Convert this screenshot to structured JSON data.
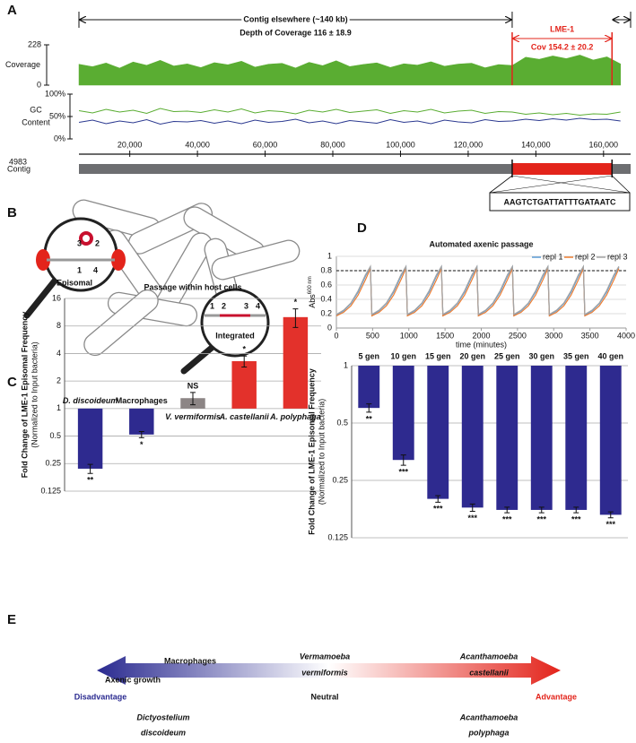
{
  "panel_labels": [
    "A",
    "B",
    "C",
    "D",
    "E"
  ],
  "chart_data": [
    {
      "type": "area",
      "ylabel": "Coverage",
      "color": "#5aad32",
      "x": [
        5000,
        9000,
        13000,
        17000,
        21000,
        25000,
        29000,
        33000,
        37000,
        41000,
        45000,
        49000,
        53000,
        57000,
        61000,
        65000,
        69000,
        73000,
        77000,
        81000,
        85000,
        89000,
        93000,
        97000,
        101000,
        105000,
        109000,
        113000,
        117000,
        121000,
        125000,
        129000,
        133000,
        137000,
        141000,
        145000,
        149000,
        153000,
        157000,
        161000,
        165000
      ],
      "values": [
        118,
        104,
        125,
        96,
        131,
        112,
        140,
        108,
        120,
        99,
        127,
        115,
        135,
        102,
        118,
        123,
        97,
        129,
        110,
        138,
        105,
        117,
        126,
        100,
        121,
        113,
        132,
        107,
        119,
        124,
        98,
        116,
        111,
        158,
        146,
        165,
        150,
        170,
        142,
        160,
        120
      ],
      "xlim": [
        4983,
        168000
      ],
      "ylim": [
        0,
        228
      ],
      "yticks": [
        0,
        228
      ],
      "region": [
        133000,
        162500
      ],
      "region_color": "#e3241b",
      "annotations": {
        "elsewhere": "Contig elsewhere (~140 kb)",
        "depth": "Depth of Coverage 116 ± 18.9",
        "region_name": "LME-1",
        "region_cov": "Cov 154.2 ± 20.2"
      }
    },
    {
      "type": "line",
      "ylabel": [
        "GC",
        "Content"
      ],
      "x": [
        5000,
        9000,
        13000,
        17000,
        21000,
        25000,
        29000,
        33000,
        37000,
        41000,
        45000,
        49000,
        53000,
        57000,
        61000,
        65000,
        69000,
        73000,
        77000,
        81000,
        85000,
        89000,
        93000,
        97000,
        101000,
        105000,
        109000,
        113000,
        117000,
        121000,
        125000,
        129000,
        133000,
        137000,
        141000,
        145000,
        149000,
        153000,
        157000,
        161000,
        165000
      ],
      "series": [
        {
          "color": "#5aad32",
          "values": [
            63,
            58,
            66,
            60,
            64,
            57,
            68,
            61,
            62,
            59,
            65,
            60,
            67,
            58,
            63,
            61,
            56,
            64,
            60,
            66,
            59,
            62,
            65,
            57,
            63,
            60,
            66,
            58,
            62,
            64,
            57,
            61,
            60,
            55,
            58,
            54,
            57,
            53,
            56,
            55,
            60
          ]
        },
        {
          "color": "#2b3990",
          "values": [
            37,
            42,
            34,
            40,
            36,
            43,
            33,
            39,
            38,
            41,
            35,
            40,
            34,
            42,
            37,
            39,
            44,
            36,
            40,
            34,
            41,
            38,
            35,
            43,
            37,
            40,
            34,
            42,
            38,
            36,
            43,
            39,
            40,
            44,
            41,
            45,
            42,
            46,
            43,
            44,
            40
          ]
        }
      ],
      "xlim": [
        4983,
        168000
      ],
      "ylim": [
        0,
        100
      ],
      "yticks": [
        {
          "value": 0,
          "label": "0%"
        },
        {
          "value": 50,
          "label": "50%"
        },
        {
          "value": 100,
          "label": "100%"
        }
      ]
    },
    {
      "type": "track",
      "ylabel": "Contig",
      "color": "#6d6e71",
      "xlim": [
        4983,
        168000
      ],
      "xticks": [
        {
          "value": 20000,
          "label": "20,000"
        },
        {
          "value": 40000,
          "label": "40,000"
        },
        {
          "value": 60000,
          "label": "60,000"
        },
        {
          "value": 80000,
          "label": "80,000"
        },
        {
          "value": 100000,
          "label": "100,000"
        },
        {
          "value": 120000,
          "label": "120,000"
        },
        {
          "value": 140000,
          "label": "140,000"
        },
        {
          "value": 160000,
          "label": "160,000"
        }
      ],
      "sequence": "AAGTCTGATTATTTGATAATC"
    },
    {
      "type": "bar",
      "title": "Passage within host cells",
      "ylabel": "Fold Change of LME-1 Episomal Frequency",
      "ylabel_note": "(Normalized to Input bacteria)",
      "categories": [
        "D. discoideum",
        "Macrophages",
        "V. vermiformis",
        "A. castellanii",
        "A. polyphaga"
      ],
      "italic": [
        true,
        false,
        true,
        true,
        true
      ],
      "values": [
        0.22,
        0.52,
        1.3,
        3.3,
        10
      ],
      "errors": [
        0.025,
        0.04,
        0.2,
        0.45,
        2.3
      ],
      "significance": [
        "**",
        "*",
        "NS",
        "*",
        "*"
      ],
      "colors": [
        "#2e2a8f",
        "#2e2a8f",
        "#8c8585",
        "#e3312b",
        "#e3312b"
      ],
      "yscale": "log2",
      "ylim": [
        0.125,
        16
      ],
      "yticks": [
        0.125,
        0.25,
        0.5,
        1,
        2,
        4,
        8,
        16
      ],
      "grid": true,
      "category_position": "baseline"
    },
    {
      "type": "line",
      "title": "Automated axenic passage",
      "ylabel": "Abs",
      "ylabel_sup": "600 nm",
      "xlabel": "time (minutes)",
      "x": [
        0,
        100,
        200,
        300,
        400,
        470,
        490,
        590,
        690,
        790,
        890,
        960,
        980,
        1080,
        1180,
        1280,
        1380,
        1450,
        1470,
        1570,
        1670,
        1770,
        1870,
        1940,
        1960,
        2060,
        2160,
        2260,
        2360,
        2430,
        2450,
        2550,
        2650,
        2750,
        2850,
        2920,
        2940,
        3040,
        3140,
        3240,
        3340,
        3410,
        3430,
        3530,
        3630,
        3730,
        3830,
        3900
      ],
      "series": [
        {
          "name": "repl 1",
          "color": "#5b9bd5",
          "values": [
            0.18,
            0.24,
            0.34,
            0.5,
            0.72,
            0.85,
            0.18,
            0.24,
            0.34,
            0.5,
            0.72,
            0.85,
            0.18,
            0.24,
            0.34,
            0.5,
            0.72,
            0.85,
            0.18,
            0.24,
            0.34,
            0.5,
            0.72,
            0.85,
            0.18,
            0.24,
            0.34,
            0.5,
            0.72,
            0.85,
            0.18,
            0.24,
            0.34,
            0.5,
            0.72,
            0.85,
            0.18,
            0.24,
            0.34,
            0.5,
            0.72,
            0.85,
            0.18,
            0.24,
            0.34,
            0.5,
            0.72,
            0.85
          ]
        },
        {
          "name": "repl 2",
          "color": "#ed7d31",
          "values": [
            0.17,
            0.22,
            0.31,
            0.46,
            0.67,
            0.83,
            0.17,
            0.22,
            0.31,
            0.46,
            0.67,
            0.83,
            0.17,
            0.22,
            0.31,
            0.46,
            0.67,
            0.83,
            0.17,
            0.22,
            0.31,
            0.46,
            0.67,
            0.83,
            0.17,
            0.22,
            0.31,
            0.46,
            0.67,
            0.83,
            0.17,
            0.22,
            0.31,
            0.46,
            0.67,
            0.83,
            0.17,
            0.22,
            0.31,
            0.46,
            0.67,
            0.83,
            0.17,
            0.22,
            0.31,
            0.46,
            0.67,
            0.83
          ]
        },
        {
          "name": "repl 3",
          "color": "#a5a5a5",
          "values": [
            0.19,
            0.25,
            0.35,
            0.52,
            0.74,
            0.86,
            0.19,
            0.25,
            0.35,
            0.52,
            0.74,
            0.86,
            0.19,
            0.25,
            0.35,
            0.52,
            0.74,
            0.86,
            0.19,
            0.25,
            0.35,
            0.52,
            0.74,
            0.86,
            0.19,
            0.25,
            0.35,
            0.52,
            0.74,
            0.86,
            0.19,
            0.25,
            0.35,
            0.52,
            0.74,
            0.86,
            0.19,
            0.25,
            0.35,
            0.52,
            0.74,
            0.86,
            0.19,
            0.25,
            0.35,
            0.52,
            0.74,
            0.86
          ]
        }
      ],
      "xlim": [
        0,
        4000
      ],
      "xticks": [
        0,
        500,
        1000,
        1500,
        2000,
        2500,
        3000,
        3500,
        4000
      ],
      "ylim": [
        0,
        1
      ],
      "yticks": [
        0,
        0.2,
        0.4,
        0.6,
        0.8,
        1
      ],
      "grid": true,
      "threshold": 0.8,
      "legend": "upper right"
    },
    {
      "type": "bar",
      "ylabel": "Fold Change of LME-1 Episomal Frequency",
      "ylabel_note": "(Normalized to Input bacteria)",
      "categories": [
        "5 gen",
        "10 gen",
        "15 gen",
        "20 gen",
        "25 gen",
        "30 gen",
        "35 gen",
        "40 gen"
      ],
      "values": [
        0.6,
        0.32,
        0.2,
        0.18,
        0.175,
        0.175,
        0.175,
        0.165
      ],
      "errors": [
        0.03,
        0.02,
        0.008,
        0.008,
        0.006,
        0.006,
        0.006,
        0.006
      ],
      "significance": [
        "**",
        "***",
        "***",
        "***",
        "***",
        "***",
        "***",
        "***"
      ],
      "color": "#2e2a8f",
      "yscale": "log2",
      "ylim": [
        0.125,
        1
      ],
      "yticks": [
        0.125,
        0.25,
        0.5,
        1
      ],
      "grid": true,
      "category_position": "top"
    }
  ],
  "panel_b": {
    "episomal": "Episomal",
    "integrated": "Integrated",
    "episomal_primers": [
      "3",
      "2",
      "1",
      "4"
    ],
    "integrated_primers": [
      "1",
      "2",
      "3",
      "4"
    ]
  },
  "panel_e": {
    "left_top": "Macrophages",
    "left_mid": "Axenic growth",
    "left_end": "Disadvantage",
    "left_bottom": [
      "Dictyostelium",
      "discoideum"
    ],
    "center_top": [
      "Vermamoeba",
      "vermiformis"
    ],
    "center": "Neutral",
    "right_top": [
      "Acanthamoeba",
      "castellanii"
    ],
    "right_end": "Advantage",
    "right_bottom": [
      "Acanthamoeba",
      "polyphaga"
    ]
  }
}
